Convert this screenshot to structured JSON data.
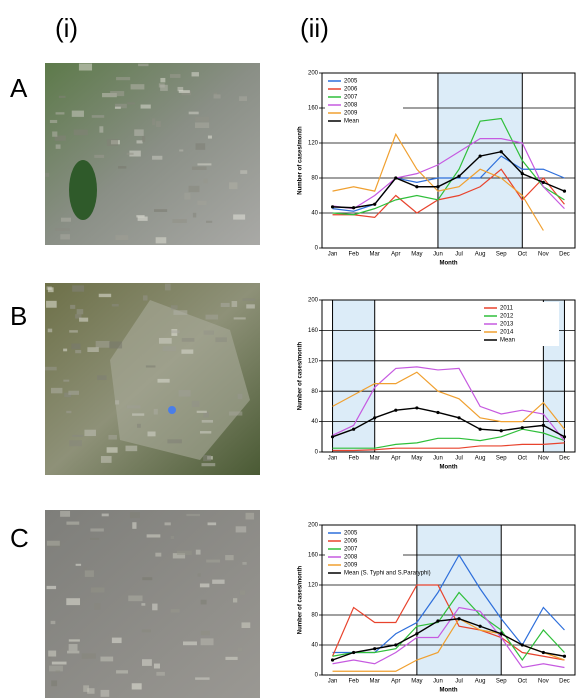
{
  "panels": {
    "column_labels": [
      "(i)",
      "(ii)"
    ],
    "row_labels": [
      "A",
      "B",
      "C"
    ]
  },
  "chart_data": [
    {
      "type": "line",
      "x_label": "Month",
      "y_label": "Number of cases/month",
      "categories": [
        "Jan",
        "Feb",
        "Mar",
        "Apr",
        "May",
        "Jun",
        "Jul",
        "Aug",
        "Sep",
        "Oct",
        "Nov",
        "Dec"
      ],
      "ylim": [
        0,
        200
      ],
      "yticks": [
        0,
        40,
        80,
        120,
        160,
        200
      ],
      "grid": true,
      "legend": "upper left",
      "series": [
        {
          "name": "2005",
          "color": "#2e6fdb",
          "values": [
            45,
            42,
            50,
            80,
            75,
            80,
            80,
            80,
            105,
            90,
            90,
            80
          ]
        },
        {
          "name": "2006",
          "color": "#e8432d",
          "values": [
            38,
            38,
            35,
            60,
            40,
            55,
            60,
            70,
            90,
            55,
            80,
            50
          ]
        },
        {
          "name": "2007",
          "color": "#2fbf3a",
          "values": [
            40,
            38,
            45,
            55,
            60,
            55,
            90,
            145,
            148,
            100,
            70,
            55
          ]
        },
        {
          "name": "2008",
          "color": "#c65ae0",
          "values": [
            48,
            45,
            60,
            80,
            85,
            95,
            110,
            125,
            125,
            120,
            70,
            45
          ]
        },
        {
          "name": "2009",
          "color": "#f0a030",
          "values": [
            65,
            70,
            65,
            130,
            90,
            65,
            70,
            90,
            80,
            60,
            20,
            null
          ]
        },
        {
          "name": "Mean",
          "color": "#000000",
          "values": [
            47,
            46,
            50,
            80,
            70,
            70,
            82,
            105,
            110,
            85,
            75,
            65
          ]
        }
      ]
    },
    {
      "type": "line",
      "x_label": "Month",
      "y_label": "Number of cases/month",
      "categories": [
        "Jan",
        "Feb",
        "Mar",
        "Apr",
        "May",
        "Jun",
        "Jul",
        "Aug",
        "Sep",
        "Oct",
        "Nov",
        "Dec"
      ],
      "ylim": [
        0,
        200
      ],
      "yticks": [
        0,
        40,
        80,
        120,
        160,
        200
      ],
      "grid": true,
      "legend": "upper right",
      "series": [
        {
          "name": "2011",
          "color": "#e8432d",
          "values": [
            2,
            2,
            3,
            5,
            5,
            5,
            5,
            8,
            8,
            10,
            10,
            12
          ]
        },
        {
          "name": "2012",
          "color": "#2fbf3a",
          "values": [
            5,
            5,
            5,
            10,
            12,
            18,
            18,
            15,
            20,
            30,
            25,
            15
          ]
        },
        {
          "name": "2013",
          "color": "#c65ae0",
          "values": [
            22,
            35,
            85,
            110,
            112,
            108,
            110,
            60,
            50,
            55,
            50,
            15
          ]
        },
        {
          "name": "2014",
          "color": "#f0a030",
          "values": [
            60,
            75,
            90,
            90,
            105,
            80,
            70,
            45,
            40,
            40,
            65,
            30
          ]
        },
        {
          "name": "Mean",
          "color": "#000000",
          "values": [
            20,
            30,
            45,
            55,
            58,
            52,
            45,
            30,
            28,
            32,
            35,
            20
          ]
        }
      ]
    },
    {
      "type": "line",
      "x_label": "Month",
      "y_label": "Number of cases/month",
      "categories": [
        "Jan",
        "Feb",
        "Mar",
        "Apr",
        "May",
        "Jun",
        "Jul",
        "Aug",
        "Sep",
        "Oct",
        "Nov",
        "Dec"
      ],
      "ylim": [
        0,
        200
      ],
      "yticks": [
        0,
        40,
        80,
        120,
        160,
        200
      ],
      "grid": true,
      "legend": "upper left",
      "series": [
        {
          "name": "2005",
          "color": "#2e6fdb",
          "values": [
            30,
            30,
            30,
            55,
            70,
            110,
            160,
            115,
            75,
            40,
            90,
            60
          ]
        },
        {
          "name": "2006",
          "color": "#e8432d",
          "values": [
            25,
            90,
            70,
            70,
            120,
            120,
            65,
            60,
            50,
            30,
            25,
            20
          ]
        },
        {
          "name": "2007",
          "color": "#2fbf3a",
          "values": [
            25,
            30,
            30,
            35,
            65,
            70,
            110,
            80,
            60,
            20,
            60,
            30
          ]
        },
        {
          "name": "2008",
          "color": "#c65ae0",
          "values": [
            15,
            20,
            15,
            30,
            50,
            50,
            90,
            85,
            50,
            10,
            15,
            10
          ]
        },
        {
          "name": "2009",
          "color": "#f0a030",
          "values": [
            5,
            5,
            5,
            5,
            20,
            30,
            75,
            60,
            55,
            40,
            30,
            20
          ]
        },
        {
          "name": "Mean (S. Typhi and S.Paratyphi)",
          "color": "#000000",
          "values": [
            20,
            30,
            35,
            40,
            55,
            72,
            75,
            65,
            55,
            40,
            30,
            25
          ]
        }
      ]
    }
  ]
}
